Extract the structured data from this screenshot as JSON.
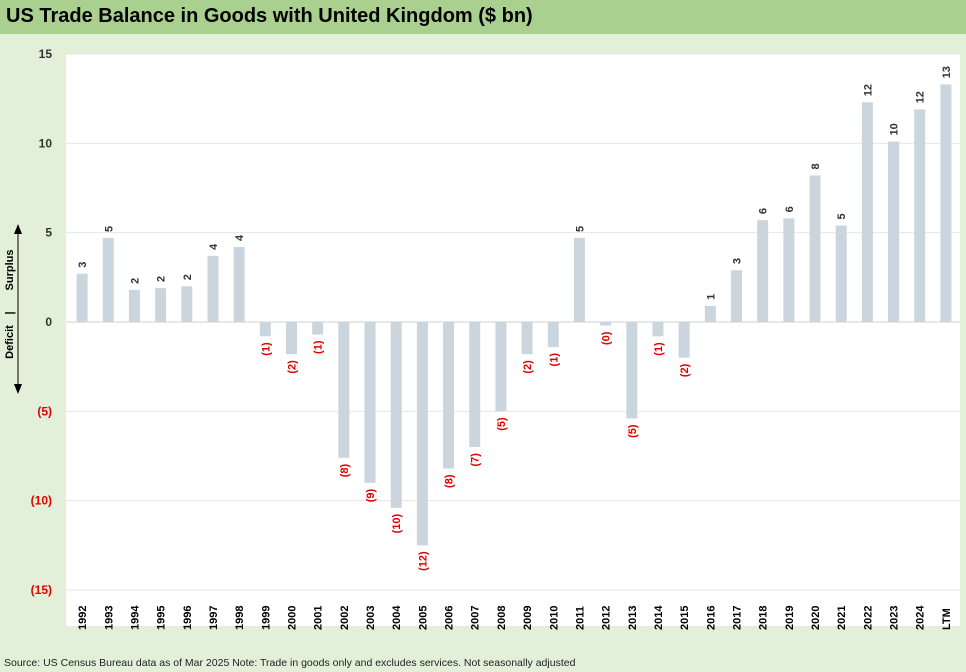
{
  "title": "US Trade Balance in Goods with United Kingdom ($ bn)",
  "source": "Source: US Census Bureau data as of Mar 2025 Note: Trade in goods only and excludes services. Not seasonally adjusted",
  "side_labels": {
    "surplus": "Surplus",
    "divider": "|",
    "deficit": "Deficit"
  },
  "colors": {
    "bar": "#cbd5de",
    "negative_text": "#e00000",
    "text": "#333333",
    "plot_bg": "#ffffff",
    "grid": "#e6e6e6"
  },
  "chart_data": {
    "type": "bar",
    "categories": [
      "1992",
      "1993",
      "1994",
      "1995",
      "1996",
      "1997",
      "1998",
      "1999",
      "2000",
      "2001",
      "2002",
      "2003",
      "2004",
      "2005",
      "2006",
      "2007",
      "2008",
      "2009",
      "2010",
      "2011",
      "2012",
      "2013",
      "2014",
      "2015",
      "2016",
      "2017",
      "2018",
      "2019",
      "2020",
      "2021",
      "2022",
      "2023",
      "2024",
      "LTM"
    ],
    "values": [
      2.7,
      4.7,
      1.8,
      1.9,
      2.0,
      3.7,
      4.2,
      -0.8,
      -1.8,
      -0.7,
      -7.6,
      -9.0,
      -10.4,
      -12.5,
      -8.2,
      -7.0,
      -5.0,
      -1.8,
      -1.4,
      4.7,
      -0.2,
      -5.4,
      -0.8,
      -2.0,
      0.9,
      2.9,
      5.7,
      5.8,
      8.2,
      5.4,
      12.3,
      10.1,
      11.9,
      13.3
    ],
    "data_labels": [
      "3",
      "5",
      "2",
      "2",
      "2",
      "4",
      "4",
      "(1)",
      "(2)",
      "(1)",
      "(8)",
      "(9)",
      "(10)",
      "(12)",
      "(8)",
      "(7)",
      "(5)",
      "(2)",
      "(1)",
      "5",
      "(0)",
      "(5)",
      "(1)",
      "(2)",
      "1",
      "3",
      "6",
      "6",
      "8",
      "5",
      "12",
      "10",
      "12",
      "13"
    ],
    "y_ticks": [
      15,
      10,
      5,
      0,
      -5,
      -10,
      -15
    ],
    "y_tick_labels": [
      "15",
      "10",
      "5",
      "0",
      "(5)",
      "(10)",
      "(15)"
    ],
    "ylim": [
      -15,
      15
    ],
    "xlabel": "",
    "ylabel": "",
    "grid": true,
    "legend": "none"
  }
}
